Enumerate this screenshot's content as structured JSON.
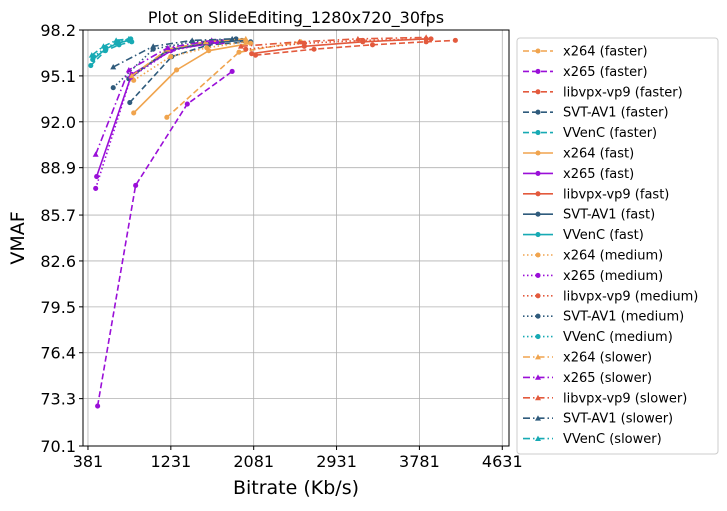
{
  "chart_data": {
    "type": "line",
    "title": "Plot on SlideEditing_1280x720_30fps",
    "xlabel": "Bitrate (Kb/s)",
    "ylabel": "VMAF",
    "xlim": [
      330,
      4700
    ],
    "ylim": [
      70.1,
      98.2
    ],
    "xticks": [
      381,
      1231,
      2081,
      2931,
      3781,
      4631
    ],
    "yticks": [
      70.1,
      73.3,
      76.4,
      79.5,
      82.6,
      85.7,
      88.9,
      92.0,
      95.1,
      98.2
    ],
    "xtick_labels": [
      "381",
      "1231",
      "2081",
      "2931",
      "3781",
      "4631"
    ],
    "ytick_labels": [
      "70.1",
      "73.3",
      "76.4",
      "79.5",
      "82.6",
      "85.7",
      "88.9",
      "92.0",
      "95.1",
      "98.2"
    ],
    "grid": true,
    "legend_position": "outside-right",
    "series": [
      {
        "name": "x264 (faster)",
        "color": "#f0a44e",
        "dash": "dashed",
        "marker": "circle",
        "x": [
          1190,
          1930,
          2560
        ],
        "y": [
          92.3,
          96.7,
          97.4
        ]
      },
      {
        "name": "x265 (faster)",
        "color": "#9a0fd8",
        "dash": "dashed",
        "marker": "circle",
        "x": [
          480,
          870,
          1400,
          1860
        ],
        "y": [
          72.8,
          87.7,
          93.2,
          95.4
        ]
      },
      {
        "name": "libvpx-vp9 (faster)",
        "color": "#e35a3d",
        "dash": "dashed",
        "marker": "circle",
        "x": [
          2100,
          2700,
          3300,
          3850,
          4150
        ],
        "y": [
          96.5,
          96.9,
          97.2,
          97.4,
          97.5
        ]
      },
      {
        "name": "SVT-AV1 (faster)",
        "color": "#2f5b7c",
        "dash": "dashed",
        "marker": "circle",
        "x": [
          810,
          1240,
          1620,
          2050
        ],
        "y": [
          93.3,
          96.4,
          97.2,
          97.4
        ]
      },
      {
        "name": "VVenC (faster)",
        "color": "#17aab4",
        "dash": "dashed",
        "marker": "circle",
        "x": [
          410,
          560,
          700,
          830
        ],
        "y": [
          95.8,
          96.8,
          97.2,
          97.4
        ]
      },
      {
        "name": "x264 (fast)",
        "color": "#f0a44e",
        "dash": "solid",
        "marker": "circle",
        "x": [
          850,
          1290,
          1620,
          2050
        ],
        "y": [
          92.6,
          95.5,
          96.8,
          97.3
        ]
      },
      {
        "name": "x265 (fast)",
        "color": "#9a0fd8",
        "dash": "solid",
        "marker": "circle",
        "x": [
          470,
          830,
          1260,
          1760
        ],
        "y": [
          88.3,
          95.2,
          96.9,
          97.4
        ]
      },
      {
        "name": "libvpx-vp9 (fast)",
        "color": "#e35a3d",
        "dash": "solid",
        "marker": "circle",
        "x": [
          2060,
          2600,
          3200,
          3850
        ],
        "y": [
          96.6,
          97.1,
          97.4,
          97.6
        ]
      },
      {
        "name": "SVT-AV1 (fast)",
        "color": "#2f5b7c",
        "dash": "solid",
        "marker": "circle",
        "x": [
          800,
          1190,
          1570,
          1960
        ],
        "y": [
          94.9,
          96.8,
          97.3,
          97.5
        ]
      },
      {
        "name": "VVenC (fast)",
        "color": "#17aab4",
        "dash": "solid",
        "marker": "circle",
        "x": [
          430,
          560,
          680,
          800
        ],
        "y": [
          96.2,
          96.9,
          97.3,
          97.5
        ]
      },
      {
        "name": "x264 (medium)",
        "color": "#f0a44e",
        "dash": "dotted",
        "marker": "circle",
        "x": [
          850,
          1230,
          1600,
          2000
        ],
        "y": [
          94.8,
          96.4,
          97.0,
          97.4
        ]
      },
      {
        "name": "x265 (medium)",
        "color": "#9a0fd8",
        "dash": "dotted",
        "marker": "circle",
        "x": [
          460,
          820,
          1230,
          1700
        ],
        "y": [
          87.5,
          95.0,
          96.8,
          97.4
        ]
      },
      {
        "name": "libvpx-vp9 (medium)",
        "color": "#e35a3d",
        "dash": "dotted",
        "marker": "circle",
        "x": [
          2000,
          2600,
          3200,
          3900
        ],
        "y": [
          96.9,
          97.3,
          97.5,
          97.6
        ]
      },
      {
        "name": "SVT-AV1 (medium)",
        "color": "#2f5b7c",
        "dash": "dotted",
        "marker": "circle",
        "x": [
          640,
          1050,
          1450,
          1900
        ],
        "y": [
          94.3,
          96.9,
          97.4,
          97.6
        ]
      },
      {
        "name": "VVenC (medium)",
        "color": "#17aab4",
        "dash": "dotted",
        "marker": "circle",
        "x": [
          440,
          560,
          690,
          820
        ],
        "y": [
          96.4,
          97.0,
          97.4,
          97.6
        ]
      },
      {
        "name": "x264 (slower)",
        "color": "#f0a44e",
        "dash": "dashdot",
        "marker": "triangle",
        "x": [
          830,
          1200,
          1590,
          2000
        ],
        "y": [
          95.1,
          96.9,
          97.4,
          97.6
        ]
      },
      {
        "name": "x265 (slower)",
        "color": "#9a0fd8",
        "dash": "dashdot",
        "marker": "triangle",
        "x": [
          460,
          800,
          1200,
          1650
        ],
        "y": [
          89.8,
          95.5,
          97.0,
          97.5
        ]
      },
      {
        "name": "libvpx-vp9 (slower)",
        "color": "#e35a3d",
        "dash": "dashdot",
        "marker": "triangle",
        "x": [
          1950,
          2550,
          3150,
          3850
        ],
        "y": [
          97.1,
          97.4,
          97.6,
          97.7
        ]
      },
      {
        "name": "SVT-AV1 (slower)",
        "color": "#2f5b7c",
        "dash": "dashdot",
        "marker": "triangle",
        "x": [
          640,
          1050,
          1450,
          1860
        ],
        "y": [
          95.7,
          97.1,
          97.5,
          97.6
        ]
      },
      {
        "name": "VVenC (slower)",
        "color": "#17aab4",
        "dash": "dashdot",
        "marker": "triangle",
        "x": [
          420,
          540,
          670,
          800
        ],
        "y": [
          96.5,
          97.1,
          97.5,
          97.6
        ]
      }
    ]
  }
}
